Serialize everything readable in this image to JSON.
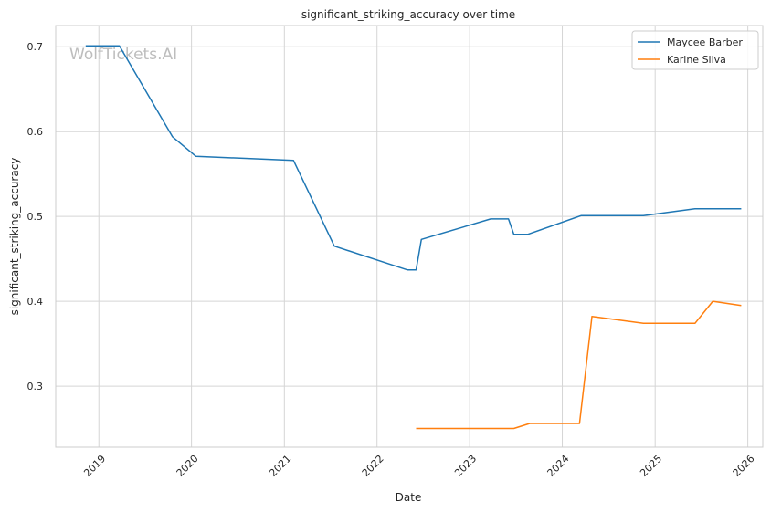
{
  "chart_data": {
    "type": "line",
    "title": "significant_striking_accuracy over time",
    "xlabel": "Date",
    "ylabel": "significant_striking_accuracy",
    "watermark": "WolfTickets.AI",
    "xlim": [
      "2018-07-15",
      "2026-03-01"
    ],
    "ylim": [
      0.228,
      0.725
    ],
    "x_ticks": [
      "2019-01-01",
      "2020-01-01",
      "2021-01-01",
      "2022-01-01",
      "2023-01-01",
      "2024-01-01",
      "2025-01-01",
      "2026-01-01"
    ],
    "x_tick_labels": [
      "2019",
      "2020",
      "2021",
      "2022",
      "2023",
      "2024",
      "2025",
      "2026"
    ],
    "y_ticks": [
      0.3,
      0.4,
      0.5,
      0.6,
      0.7
    ],
    "y_tick_labels": [
      "0.3",
      "0.4",
      "0.5",
      "0.6",
      "0.7"
    ],
    "grid": true,
    "legend": {
      "placement": "top-right"
    },
    "series": [
      {
        "name": "Maycee Barber",
        "color": "#1f77b4",
        "points": [
          {
            "x": "2018-11-10",
            "y": 0.701
          },
          {
            "x": "2019-03-23",
            "y": 0.701
          },
          {
            "x": "2019-10-18",
            "y": 0.594
          },
          {
            "x": "2020-01-18",
            "y": 0.571
          },
          {
            "x": "2021-02-06",
            "y": 0.566
          },
          {
            "x": "2021-07-17",
            "y": 0.465
          },
          {
            "x": "2022-04-30",
            "y": 0.437
          },
          {
            "x": "2022-06-04",
            "y": 0.437
          },
          {
            "x": "2022-06-25",
            "y": 0.473
          },
          {
            "x": "2023-03-25",
            "y": 0.497
          },
          {
            "x": "2023-06-03",
            "y": 0.497
          },
          {
            "x": "2023-06-24",
            "y": 0.479
          },
          {
            "x": "2023-08-19",
            "y": 0.479
          },
          {
            "x": "2024-03-16",
            "y": 0.501
          },
          {
            "x": "2024-11-16",
            "y": 0.501
          },
          {
            "x": "2025-06-07",
            "y": 0.509
          },
          {
            "x": "2025-12-06",
            "y": 0.509
          }
        ]
      },
      {
        "name": "Karine Silva",
        "color": "#ff7f0e",
        "points": [
          {
            "x": "2022-06-04",
            "y": 0.25
          },
          {
            "x": "2023-06-24",
            "y": 0.25
          },
          {
            "x": "2023-08-26",
            "y": 0.256
          },
          {
            "x": "2024-03-09",
            "y": 0.256
          },
          {
            "x": "2024-04-27",
            "y": 0.382
          },
          {
            "x": "2024-11-16",
            "y": 0.374
          },
          {
            "x": "2025-06-07",
            "y": 0.374
          },
          {
            "x": "2025-08-16",
            "y": 0.4
          },
          {
            "x": "2025-12-06",
            "y": 0.395
          }
        ]
      }
    ]
  }
}
